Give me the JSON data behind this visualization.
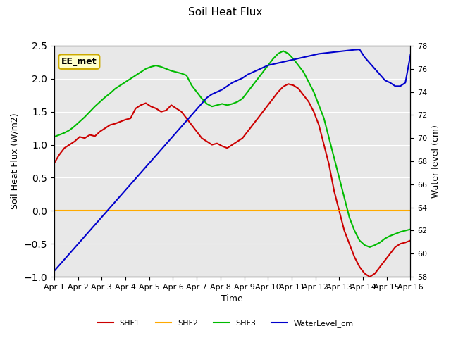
{
  "title": "Soil Heat Flux",
  "ylabel_left": "Soil Heat Flux (W/m2)",
  "ylabel_right": "Water level (cm)",
  "xlabel": "Time",
  "annotation": "EE_met",
  "x_ticks": [
    "Apr 1",
    "Apr 2",
    "Apr 3",
    "Apr 4",
    "Apr 5",
    "Apr 6",
    "Apr 7",
    "Apr 8",
    "Apr 9",
    "Apr 10",
    "Apr 11",
    "Apr 12",
    "Apr 13",
    "Apr 14",
    "Apr 15",
    "Apr 16"
  ],
  "ylim_left": [
    -1.0,
    2.5
  ],
  "ylim_right": [
    58,
    78
  ],
  "yticks_left": [
    -1.0,
    -0.5,
    0.0,
    0.5,
    1.0,
    1.5,
    2.0,
    2.5
  ],
  "yticks_right": [
    58,
    60,
    62,
    64,
    66,
    68,
    70,
    72,
    74,
    76,
    78
  ],
  "background_color": "#e8e8e8",
  "legend": [
    "SHF1",
    "SHF2",
    "SHF3",
    "WaterLevel_cm"
  ],
  "colors": {
    "SHF1": "#cc0000",
    "SHF2": "#ffaa00",
    "SHF3": "#00bb00",
    "WaterLevel_cm": "#0000cc"
  },
  "shf1": [
    0.72,
    0.85,
    0.95,
    1.0,
    1.05,
    1.12,
    1.1,
    1.15,
    1.13,
    1.2,
    1.25,
    1.3,
    1.32,
    1.35,
    1.38,
    1.4,
    1.55,
    1.6,
    1.63,
    1.58,
    1.55,
    1.5,
    1.52,
    1.6,
    1.55,
    1.5,
    1.4,
    1.3,
    1.2,
    1.1,
    1.05,
    1.0,
    1.02,
    0.98,
    0.95,
    1.0,
    1.05,
    1.1,
    1.2,
    1.3,
    1.4,
    1.5,
    1.6,
    1.7,
    1.8,
    1.88,
    1.92,
    1.9,
    1.85,
    1.75,
    1.65,
    1.5,
    1.3,
    1.0,
    0.7,
    0.3,
    -0.0,
    -0.3,
    -0.5,
    -0.7,
    -0.85,
    -0.95,
    -1.0,
    -0.95,
    -0.85,
    -0.75,
    -0.65,
    -0.55,
    -0.5,
    -0.48,
    -0.45
  ],
  "shf2": [
    0.0,
    0.0,
    0.0,
    0.0,
    0.0,
    0.0,
    0.0,
    0.0,
    0.0,
    0.0,
    0.0,
    0.0,
    0.0,
    0.0,
    0.0,
    0.0,
    0.0,
    0.0,
    0.0,
    0.0,
    0.0,
    0.0,
    0.0,
    0.0,
    0.0,
    0.0,
    0.0,
    0.0,
    0.0,
    0.0,
    0.0,
    0.0,
    0.0,
    0.0,
    0.0,
    0.0,
    0.0,
    0.0,
    0.0,
    0.0,
    0.0,
    0.0,
    0.0,
    0.0,
    0.0,
    0.0,
    0.0,
    0.0,
    0.0,
    0.0,
    0.0,
    0.0,
    0.0,
    0.0,
    0.0,
    0.0,
    0.0,
    0.0,
    0.0,
    0.0,
    0.0,
    0.0,
    0.0,
    0.0,
    0.0,
    0.0,
    0.0,
    0.0,
    0.0,
    0.0,
    0.0
  ],
  "shf3": [
    1.12,
    1.15,
    1.18,
    1.22,
    1.28,
    1.35,
    1.42,
    1.5,
    1.58,
    1.65,
    1.72,
    1.78,
    1.85,
    1.9,
    1.95,
    2.0,
    2.05,
    2.1,
    2.15,
    2.18,
    2.2,
    2.18,
    2.15,
    2.12,
    2.1,
    2.08,
    2.05,
    1.9,
    1.8,
    1.7,
    1.62,
    1.58,
    1.6,
    1.62,
    1.6,
    1.62,
    1.65,
    1.7,
    1.8,
    1.9,
    2.0,
    2.1,
    2.2,
    2.3,
    2.38,
    2.42,
    2.38,
    2.3,
    2.2,
    2.1,
    1.95,
    1.8,
    1.6,
    1.4,
    1.1,
    0.8,
    0.5,
    0.2,
    -0.1,
    -0.3,
    -0.45,
    -0.52,
    -0.55,
    -0.52,
    -0.48,
    -0.42,
    -0.38,
    -0.35,
    -0.32,
    -0.3,
    -0.28
  ],
  "water_level_right": [
    58.5,
    59.0,
    59.5,
    60.0,
    60.5,
    61.0,
    61.5,
    62.0,
    62.5,
    63.0,
    63.5,
    64.0,
    64.5,
    65.0,
    65.5,
    66.0,
    66.5,
    67.0,
    67.5,
    68.0,
    68.5,
    69.0,
    69.5,
    70.0,
    70.5,
    71.0,
    71.5,
    72.0,
    72.5,
    73.0,
    73.5,
    73.8,
    74.0,
    74.2,
    74.5,
    74.8,
    75.0,
    75.2,
    75.5,
    75.7,
    75.9,
    76.1,
    76.3,
    76.4,
    76.5,
    76.6,
    76.7,
    76.8,
    76.9,
    77.0,
    77.1,
    77.2,
    77.3,
    77.35,
    77.4,
    77.45,
    77.5,
    77.55,
    77.6,
    77.65,
    77.68,
    77.0,
    76.5,
    76.0,
    75.5,
    75.0,
    74.8,
    74.5,
    74.5,
    74.8,
    77.2
  ]
}
